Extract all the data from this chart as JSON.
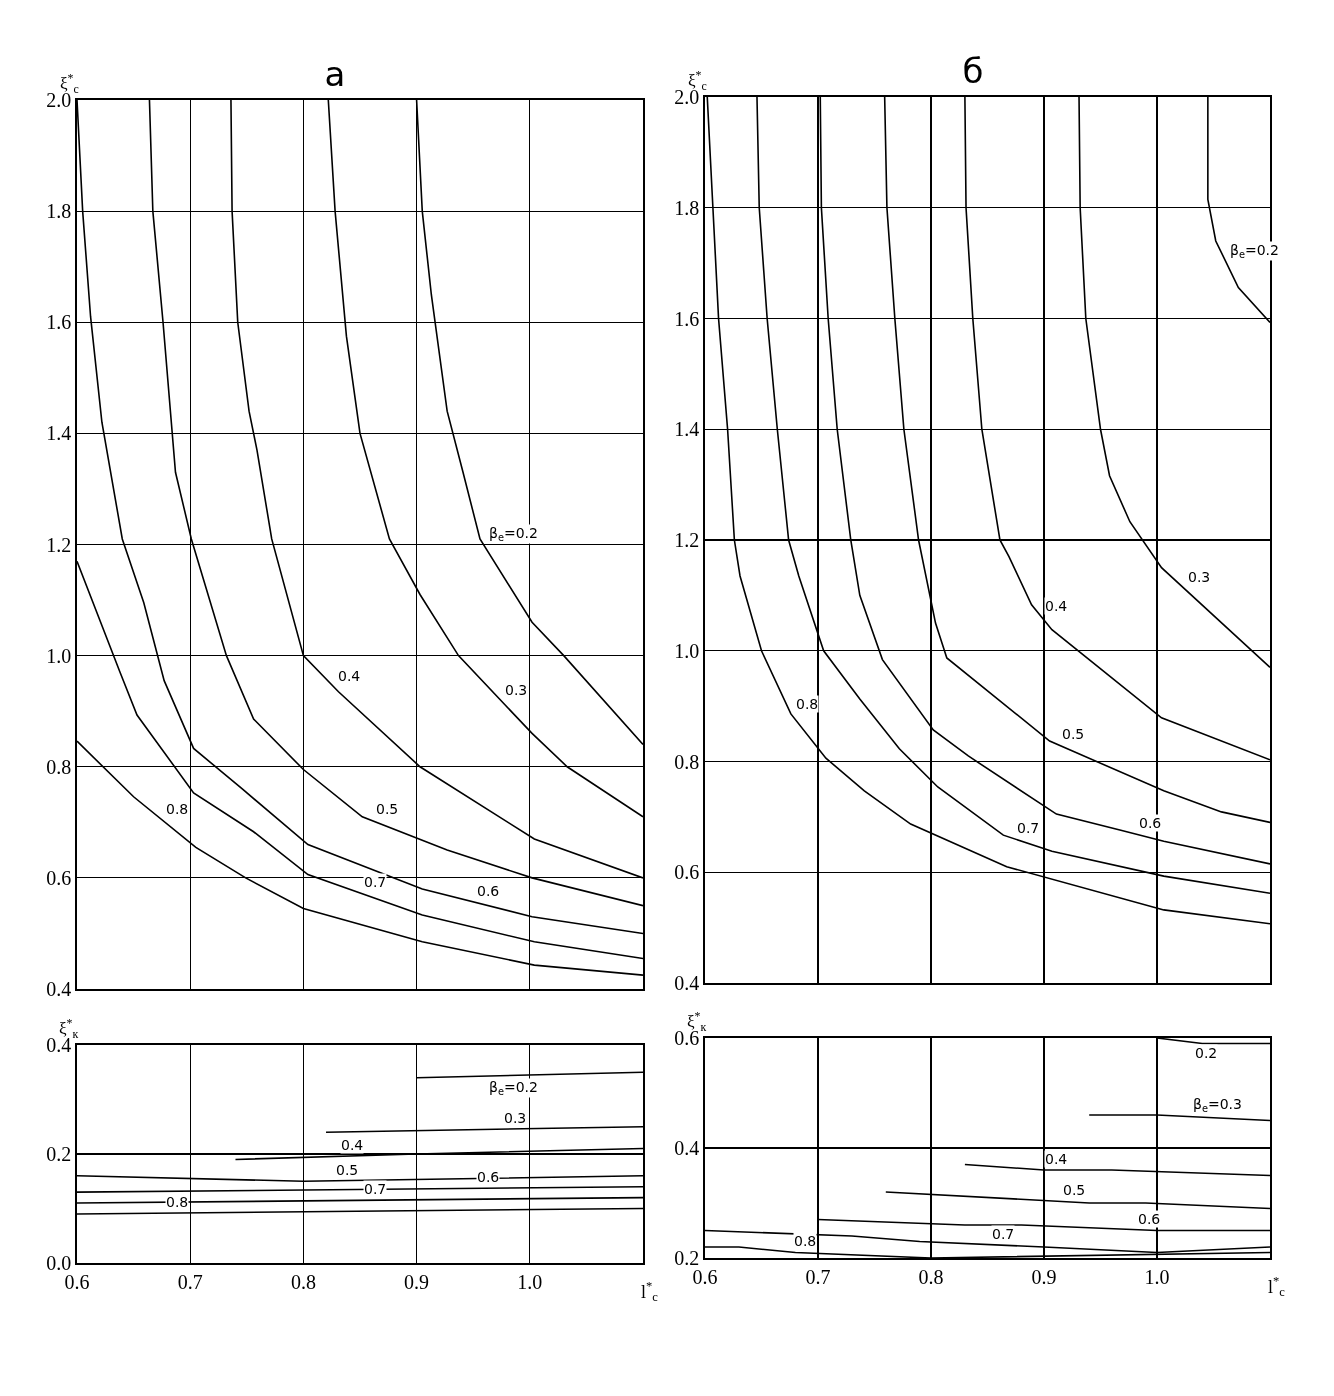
{
  "chart_data": [
    {
      "type": "line",
      "title": "а",
      "ylabel": "ξ$^{*}$$_{c}$",
      "xlim": [
        0.6,
        1.1
      ],
      "xticks": [
        0.6,
        0.7,
        0.8,
        0.9,
        1
      ],
      "ylim": [
        0.4,
        2.0
      ],
      "yticks": [
        0.4,
        0.6,
        0.8,
        {
          "value": 1,
          "label": "1.0"
        },
        1.2,
        1.4,
        1.6,
        1.8,
        {
          "value": 2,
          "label": "2.0"
        }
      ],
      "grid": true,
      "tick_labels": "y",
      "series": [
        {
          "name": "β$_{e}$=0.2",
          "color": "#000000",
          "x": [
            0.9,
            0.905,
            0.913,
            0.927,
            0.941,
            0.956,
            1.002,
            1.03,
            1.1
          ],
          "values": [
            2.0,
            1.8,
            1.65,
            1.44,
            1.33,
            1.21,
            1.06,
            1.0,
            0.84
          ]
        },
        {
          "name": "0.3",
          "color": "#000000",
          "x": [
            0.822,
            0.828,
            0.838,
            0.85,
            0.876,
            0.903,
            0.937,
            1.002,
            1.033,
            1.1
          ],
          "values": [
            2.0,
            1.8,
            1.575,
            1.4,
            1.21,
            1.11,
            1.0,
            0.86,
            0.8,
            0.71
          ]
        },
        {
          "name": "0.4",
          "color": "#000000",
          "x": [
            0.736,
            0.737,
            0.742,
            0.752,
            0.759,
            0.772,
            0.8,
            0.831,
            0.903,
            1.004,
            1.1
          ],
          "values": [
            2.0,
            1.8,
            1.6,
            1.44,
            1.37,
            1.21,
            1.0,
            0.935,
            0.8,
            0.67,
            0.6
          ]
        },
        {
          "name": "0.5",
          "color": "#000000",
          "x": [
            0.664,
            0.667,
            0.676,
            0.687,
            0.701,
            0.732,
            0.756,
            0.8,
            0.852,
            0.927,
            1.002,
            1.1
          ],
          "values": [
            2.0,
            1.8,
            1.6,
            1.33,
            1.21,
            1.0,
            0.886,
            0.795,
            0.71,
            0.65,
            0.6,
            0.55
          ]
        },
        {
          "name": "0.6",
          "color": "#000000",
          "x": [
            0.6,
            0.605,
            0.612,
            0.622,
            0.64,
            0.659,
            0.677,
            0.703,
            0.746,
            0.804,
            0.905,
            1.002,
            1.1
          ],
          "values": [
            2.0,
            1.8,
            1.61,
            1.42,
            1.21,
            1.095,
            0.955,
            0.833,
            0.76,
            0.66,
            0.58,
            0.53,
            0.5
          ]
        },
        {
          "name": "0.7",
          "color": "#000000",
          "x": [
            0.6,
            0.638,
            0.653,
            0.703,
            0.756,
            0.804,
            0.905,
            1.004,
            1.1
          ],
          "values": [
            1.17,
            0.97,
            0.893,
            0.753,
            0.683,
            0.606,
            0.533,
            0.485,
            0.455
          ]
        },
        {
          "name": "0.8",
          "color": "#000000",
          "x": [
            0.6,
            0.65,
            0.705,
            0.749,
            0.8,
            0.905,
            1.004,
            1.1
          ],
          "values": [
            0.846,
            0.746,
            0.655,
            0.6,
            0.545,
            0.485,
            0.443,
            0.425
          ]
        }
      ]
    },
    {
      "type": "line",
      "title": "б",
      "ylabel": "ξ$^{*}$$_{c}$",
      "xlim": [
        0.6,
        1.1
      ],
      "xticks": [
        0.6,
        0.7,
        0.8,
        0.9,
        1
      ],
      "ylim": [
        0.4,
        2.0
      ],
      "yticks": [
        0.4,
        0.6,
        0.8,
        {
          "value": 1,
          "label": "1.0"
        },
        1.2,
        1.4,
        1.6,
        1.8,
        {
          "value": 2,
          "label": "2.0"
        }
      ],
      "grid": true,
      "tick_labels": "y",
      "series": [
        {
          "name": "β$_{e}$=0.2",
          "color": "#000000",
          "x": [
            1.045,
            1.045,
            1.052,
            1.072,
            1.1
          ],
          "values": [
            2.0,
            1.815,
            1.74,
            1.656,
            1.593
          ]
        },
        {
          "name": "0.3",
          "color": "#000000",
          "x": [
            0.931,
            0.932,
            0.937,
            0.95,
            0.958,
            0.976,
            1.004,
            1.1
          ],
          "values": [
            2.0,
            1.8,
            1.6,
            1.4,
            1.316,
            1.233,
            1.15,
            0.97
          ]
        },
        {
          "name": "0.4",
          "color": "#000000",
          "x": [
            0.83,
            0.831,
            0.837,
            0.845,
            0.861,
            0.869,
            0.889,
            0.907,
            1.004,
            1.1
          ],
          "values": [
            2.0,
            1.8,
            1.6,
            1.4,
            1.2,
            1.17,
            1.083,
            1.038,
            0.879,
            0.803
          ]
        },
        {
          "name": "0.5",
          "color": "#000000",
          "x": [
            0.759,
            0.761,
            0.768,
            0.776,
            0.789,
            0.804,
            0.814,
            0.905,
            1.006,
            1.057,
            1.1
          ],
          "values": [
            2.0,
            1.8,
            1.6,
            1.4,
            1.2,
            1.05,
            0.987,
            0.837,
            0.747,
            0.709,
            0.69
          ]
        },
        {
          "name": "0.6",
          "color": "#000000",
          "x": [
            0.702,
            0.703,
            0.709,
            0.717,
            0.729,
            0.737,
            0.757,
            0.802,
            0.833,
            0.911,
            0.968,
            1.006,
            1.1
          ],
          "values": [
            2.0,
            1.8,
            1.6,
            1.4,
            1.2,
            1.1,
            0.984,
            0.857,
            0.81,
            0.705,
            0.676,
            0.656,
            0.615
          ]
        },
        {
          "name": "0.7",
          "color": "#000000",
          "x": [
            0.646,
            0.648,
            0.655,
            0.664,
            0.674,
            0.683,
            0.705,
            0.737,
            0.772,
            0.806,
            0.864,
            0.907,
            1.006,
            1.1
          ],
          "values": [
            2.0,
            1.8,
            1.6,
            1.4,
            1.2,
            1.135,
            1.0,
            0.913,
            0.823,
            0.754,
            0.667,
            0.638,
            0.593,
            0.562
          ]
        },
        {
          "name": "0.8",
          "color": "#000000",
          "x": [
            0.602,
            0.607,
            0.612,
            0.62,
            0.626,
            0.631,
            0.65,
            0.676,
            0.707,
            0.741,
            0.782,
            0.867,
            1.006,
            1.1
          ],
          "values": [
            2.0,
            1.8,
            1.6,
            1.4,
            1.2,
            1.135,
            1.0,
            0.886,
            0.806,
            0.747,
            0.687,
            0.61,
            0.532,
            0.507
          ]
        }
      ]
    },
    {
      "type": "line",
      "ylabel": "ξ$^{*}$$_{к}$",
      "xlabel": "l$^{*}$$_{c}$",
      "xlim": [
        0.6,
        1.1
      ],
      "xticks": [
        0.6,
        0.7,
        0.8,
        0.9,
        {
          "value": 1,
          "label": "1.0"
        }
      ],
      "ylim": [
        0.0,
        0.4
      ],
      "yticks": [
        {
          "value": 0,
          "label": "0.0"
        },
        0.2,
        0.4
      ],
      "grid": true,
      "series": [
        {
          "name": "β$_{e}$=0.2",
          "color": "#000000",
          "x": [
            0.9,
            1.1
          ],
          "values": [
            0.34,
            0.35
          ]
        },
        {
          "name": "0.3",
          "color": "#000000",
          "x": [
            0.82,
            1.1
          ],
          "values": [
            0.24,
            0.25
          ]
        },
        {
          "name": "0.4",
          "color": "#000000",
          "x": [
            0.74,
            0.9,
            1.1
          ],
          "values": [
            0.19,
            0.2,
            0.21
          ]
        },
        {
          "name": "0.5",
          "color": "#000000",
          "x": [
            0.6,
            0.8,
            1.1
          ],
          "values": [
            0.16,
            0.15,
            0.16
          ]
        },
        {
          "name": "0.6",
          "color": "#000000",
          "x": [
            0.6,
            1.1
          ],
          "values": [
            0.13,
            0.14
          ]
        },
        {
          "name": "0.7",
          "color": "#000000",
          "x": [
            0.6,
            1.1
          ],
          "values": [
            0.11,
            0.12
          ]
        },
        {
          "name": "0.8",
          "color": "#000000",
          "x": [
            0.6,
            1.1
          ],
          "values": [
            0.09,
            0.1
          ]
        }
      ]
    },
    {
      "type": "line",
      "ylabel": "ξ$^{*}$$_{к}$",
      "xlabel": "l$^{*}$$_{c}$",
      "xlim": [
        0.6,
        1.1
      ],
      "xticks": [
        0.6,
        0.7,
        0.8,
        0.9,
        {
          "value": 1,
          "label": "1.0"
        }
      ],
      "ylim": [
        0.2,
        0.6
      ],
      "yticks": [
        0.2,
        0.4,
        0.6
      ],
      "grid": true,
      "series": [
        {
          "name": "0.2",
          "color": "#000000",
          "x": [
            1.0,
            1.04,
            1.1
          ],
          "values": [
            0.6,
            0.59,
            0.59
          ]
        },
        {
          "name": "β$_{e}$=0.3",
          "color": "#000000",
          "x": [
            0.94,
            1.0,
            1.1
          ],
          "values": [
            0.46,
            0.46,
            0.45
          ]
        },
        {
          "name": "0.4",
          "color": "#000000",
          "x": [
            0.83,
            0.9,
            0.96,
            1.1
          ],
          "values": [
            0.37,
            0.36,
            0.36,
            0.35
          ]
        },
        {
          "name": "0.5",
          "color": "#000000",
          "x": [
            0.76,
            0.94,
            0.99,
            1.1
          ],
          "values": [
            0.32,
            0.3,
            0.3,
            0.29
          ]
        },
        {
          "name": "0.6",
          "color": "#000000",
          "x": [
            0.7,
            0.83,
            0.88,
            1.0,
            1.1
          ],
          "values": [
            0.27,
            0.26,
            0.26,
            0.25,
            0.25
          ]
        },
        {
          "name": "0.7",
          "color": "#000000",
          "x": [
            0.6,
            0.73,
            0.79,
            0.9,
            1.0,
            1.1
          ],
          "values": [
            0.25,
            0.24,
            0.23,
            0.22,
            0.21,
            0.22
          ]
        },
        {
          "name": "0.8",
          "color": "#000000",
          "x": [
            0.6,
            0.63,
            0.68,
            0.8,
            1.1
          ],
          "values": [
            0.22,
            0.22,
            0.21,
            0.2,
            0.21
          ]
        }
      ]
    }
  ]
}
